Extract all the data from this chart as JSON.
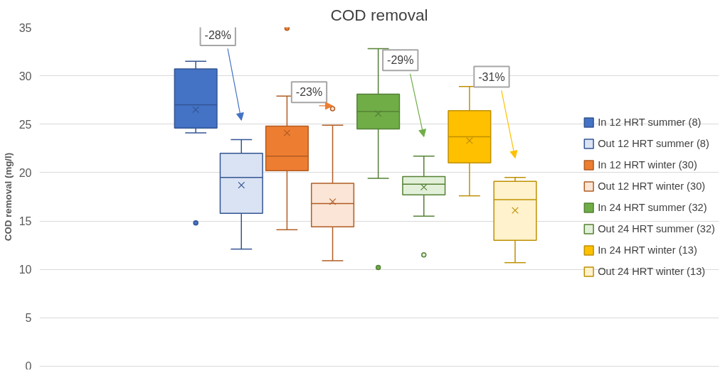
{
  "chart_data": {
    "type": "box",
    "title": "COD removal",
    "ylabel": "COD removal (mg/l)",
    "categories": [
      null
    ],
    "ylim": [
      0,
      35
    ],
    "yticks": [
      0,
      5,
      10,
      15,
      20,
      25,
      30,
      35
    ],
    "grid": "y",
    "legend": "right",
    "series": [
      {
        "name": "In 12 HRT summer (8)",
        "color": "#4472c4",
        "boxes": [
          {
            "low": 24.1,
            "q1": 24.6,
            "median": 27.0,
            "q3": 30.7,
            "high": 31.5,
            "mean": 26.5,
            "outliers": [
              14.8
            ]
          }
        ]
      },
      {
        "name": "Out 12 HRT summer (8)",
        "color": "#dae3f3",
        "boxes": [
          {
            "low": 12.1,
            "q1": 15.8,
            "median": 19.5,
            "q3": 22.0,
            "high": 23.4,
            "mean": 18.7
          }
        ]
      },
      {
        "name": "In 12 HRT winter (30)",
        "color": "#ed7d31",
        "boxes": [
          {
            "low": 14.1,
            "q1": 20.2,
            "median": 21.7,
            "q3": 24.8,
            "high": 27.9,
            "mean": 24.1,
            "outliers": [
              34.9
            ]
          }
        ]
      },
      {
        "name": "Out 12 HRT winter (30)",
        "color": "#fbe5d6",
        "boxes": [
          {
            "low": 10.9,
            "q1": 14.4,
            "median": 16.8,
            "q3": 18.9,
            "high": 24.9,
            "mean": 17.0,
            "outliers": [
              26.6
            ]
          }
        ]
      },
      {
        "name": "In 24 HRT summer (32)",
        "color": "#70ad47",
        "boxes": [
          {
            "low": 19.4,
            "q1": 24.5,
            "median": 26.3,
            "q3": 28.1,
            "high": 32.8,
            "mean": 26.1,
            "outliers": [
              10.2
            ]
          }
        ]
      },
      {
        "name": "Out 24 HRT summer (32)",
        "color": "#e2f0d9",
        "boxes": [
          {
            "low": 15.5,
            "q1": 17.7,
            "median": 18.8,
            "q3": 19.6,
            "high": 21.7,
            "mean": 18.5,
            "outliers": [
              11.5
            ]
          }
        ]
      },
      {
        "name": "In 24 HRT winter (13)",
        "color": "#ffc000",
        "boxes": [
          {
            "low": 17.6,
            "q1": 21.0,
            "median": 23.7,
            "q3": 26.4,
            "high": 28.9,
            "mean": 23.3
          }
        ]
      },
      {
        "name": "Out 24 HRT winter (13)",
        "color": "#fff2cc",
        "boxes": [
          {
            "low": 10.7,
            "q1": 13.0,
            "median": 17.2,
            "q3": 19.1,
            "high": 19.5,
            "mean": 16.1
          }
        ]
      }
    ],
    "annotations": [
      "-28%",
      "-23%",
      "-29%",
      "-31%"
    ]
  }
}
